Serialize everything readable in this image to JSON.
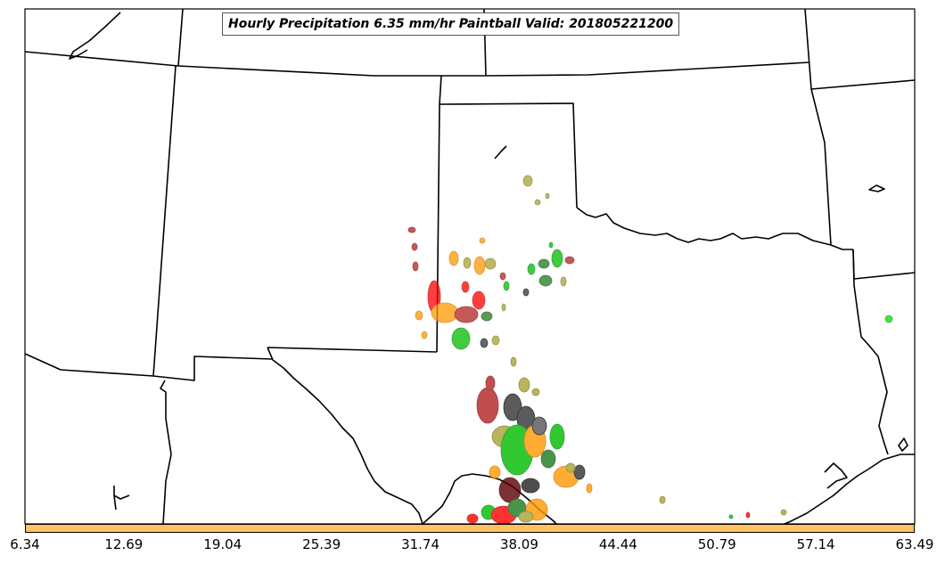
{
  "title": "Hourly Precipitation 6.35 mm/hr Paintball Valid: 201805221200",
  "colorbar": {
    "color": "#ffc164",
    "ticks": [
      "6.34",
      "12.69",
      "19.04",
      "25.39",
      "31.74",
      "38.09",
      "44.44",
      "50.79",
      "57.14",
      "63.49"
    ]
  },
  "member_colors": {
    "red": "#ff0000",
    "dark-red": "#b22222",
    "orange": "#ff9900",
    "green": "#00bb00",
    "dark-green": "#1e7a1e",
    "olive": "#a9a330",
    "dark-gray": "#333333",
    "maroon": "#5a0000"
  }
}
